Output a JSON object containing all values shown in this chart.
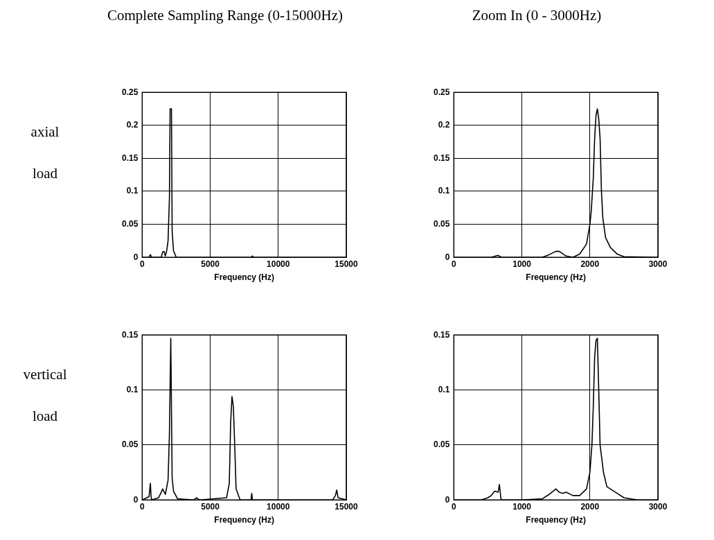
{
  "chart_data": [
    {
      "type": "line",
      "title": "Complete Sampling Range (0-15000Hz)",
      "ylabel": "axial load",
      "xlabel": "Frequency (Hz)",
      "grid": true,
      "marker": "none",
      "line_style": "solid",
      "legend": false,
      "xlim": [
        0,
        15000
      ],
      "xticks": [
        0,
        5000,
        10000,
        15000
      ],
      "ylim": [
        0,
        0.25
      ],
      "yticks": [
        0,
        0.05,
        0.1,
        0.15,
        0.2,
        0.25
      ],
      "series": [
        {
          "color": "#000000",
          "x": [
            0,
            500,
            600,
            700,
            1400,
            1500,
            1600,
            1700,
            1800,
            1900,
            2000,
            2050,
            2150,
            2200,
            2300,
            2500,
            8000,
            8100,
            8200,
            15000
          ],
          "values": [
            0,
            0,
            0.004,
            0,
            0,
            0.008,
            0.009,
            0.002,
            0.01,
            0.025,
            0.09,
            0.225,
            0.225,
            0.04,
            0.01,
            0,
            0,
            0.002,
            0,
            0
          ]
        }
      ]
    },
    {
      "type": "line",
      "title": "Zoom In (0 - 3000Hz)",
      "xlabel": "Frequency (Hz)",
      "grid": true,
      "marker": "none",
      "line_style": "solid",
      "legend": false,
      "xlim": [
        0,
        3000
      ],
      "xticks": [
        0,
        1000,
        2000,
        3000
      ],
      "ylim": [
        0,
        0.25
      ],
      "yticks": [
        0,
        0.05,
        0.1,
        0.15,
        0.2,
        0.25
      ],
      "series": [
        {
          "color": "#000000",
          "x": [
            0,
            550,
            650,
            700,
            1300,
            1400,
            1500,
            1550,
            1650,
            1750,
            1850,
            1950,
            2000,
            2020,
            2050,
            2070,
            2090,
            2110,
            2130,
            2150,
            2170,
            2190,
            2230,
            2300,
            2400,
            2500,
            3000
          ],
          "values": [
            0,
            0,
            0.003,
            0,
            0,
            0.004,
            0.009,
            0.009,
            0.002,
            0,
            0.005,
            0.02,
            0.05,
            0.07,
            0.12,
            0.18,
            0.215,
            0.225,
            0.21,
            0.18,
            0.1,
            0.06,
            0.03,
            0.015,
            0.005,
            0.001,
            0
          ]
        }
      ]
    },
    {
      "type": "line",
      "ylabel": "vertical load",
      "xlabel": "Frequency (Hz)",
      "grid": true,
      "marker": "none",
      "line_style": "solid",
      "legend": false,
      "xlim": [
        0,
        15000
      ],
      "xticks": [
        0,
        5000,
        10000,
        15000
      ],
      "ylim": [
        0,
        0.15
      ],
      "yticks": [
        0,
        0.05,
        0.1,
        0.15
      ],
      "series": [
        {
          "color": "#000000",
          "x": [
            0,
            500,
            600,
            650,
            700,
            1200,
            1400,
            1500,
            1700,
            1900,
            2000,
            2100,
            2200,
            2300,
            2600,
            3800,
            4000,
            4200,
            6200,
            6400,
            6500,
            6600,
            6700,
            6800,
            6900,
            7200,
            8000,
            8050,
            8100,
            14000,
            14200,
            14300,
            14400,
            15000
          ],
          "values": [
            0,
            0.003,
            0.015,
            0.003,
            0,
            0.002,
            0.007,
            0.01,
            0.005,
            0.018,
            0.06,
            0.147,
            0.02,
            0.008,
            0.001,
            0,
            0.002,
            0,
            0.002,
            0.015,
            0.07,
            0.094,
            0.085,
            0.05,
            0.01,
            0,
            0,
            0.006,
            0,
            0,
            0.004,
            0.009,
            0.002,
            0
          ]
        }
      ]
    },
    {
      "type": "line",
      "xlabel": "Frequency (Hz)",
      "grid": true,
      "marker": "none",
      "line_style": "solid",
      "legend": false,
      "xlim": [
        0,
        3000
      ],
      "xticks": [
        0,
        1000,
        2000,
        3000
      ],
      "ylim": [
        0,
        0.15
      ],
      "yticks": [
        0,
        0.05,
        0.1,
        0.15
      ],
      "series": [
        {
          "color": "#000000",
          "x": [
            0,
            400,
            500,
            550,
            600,
            650,
            670,
            690,
            700,
            1000,
            1300,
            1400,
            1500,
            1550,
            1600,
            1650,
            1750,
            1850,
            1950,
            2000,
            2030,
            2050,
            2070,
            2090,
            2110,
            2130,
            2150,
            2200,
            2250,
            2400,
            2500,
            2700,
            3000
          ],
          "values": [
            0,
            0,
            0.002,
            0.004,
            0.008,
            0.007,
            0.014,
            0.002,
            0,
            0,
            0.001,
            0.005,
            0.01,
            0.007,
            0.006,
            0.007,
            0.004,
            0.004,
            0.01,
            0.025,
            0.05,
            0.085,
            0.13,
            0.145,
            0.147,
            0.1,
            0.05,
            0.025,
            0.012,
            0.006,
            0.002,
            0,
            0
          ]
        }
      ]
    }
  ]
}
